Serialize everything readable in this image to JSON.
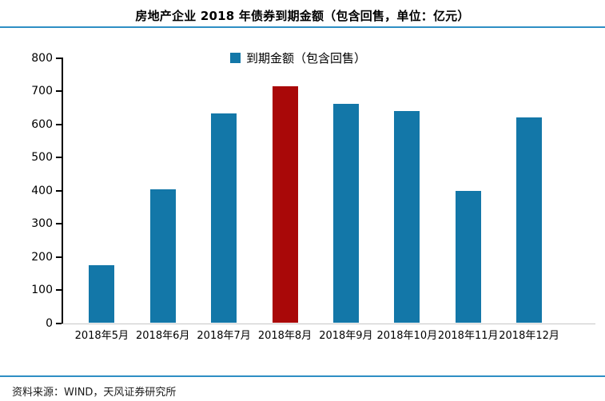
{
  "title": "房地产企业 2018 年债券到期金额（包含回售，单位：亿元）",
  "legend": {
    "label": "到期金额（包含回售）"
  },
  "source": "资料来源：WIND，天风证券研究所",
  "colors": {
    "bar": "#1377A8",
    "highlight_bar": "#A90808",
    "rule": "#2E8FC4",
    "axis": "#000000",
    "baseline": "#C6C6C6"
  },
  "chart_data": {
    "type": "bar",
    "title": "房地产企业 2018 年债券到期金额（包含回售，单位：亿元）",
    "categories": [
      "2018年5月",
      "2018年6月",
      "2018年7月",
      "2018年8月",
      "2018年9月",
      "2018年10月",
      "2018年11月",
      "2018年12月"
    ],
    "values": [
      175,
      405,
      633,
      716,
      662,
      641,
      399,
      620
    ],
    "highlight_index": 3,
    "series_name": "到期金额（包含回售）",
    "unit": "亿元",
    "xlabel": "",
    "ylabel": "",
    "ylim": [
      0,
      800
    ],
    "ytick_step": 100,
    "yticks": [
      0,
      100,
      200,
      300,
      400,
      500,
      600,
      700,
      800
    ],
    "grid": false,
    "legend_position": "top-center"
  }
}
